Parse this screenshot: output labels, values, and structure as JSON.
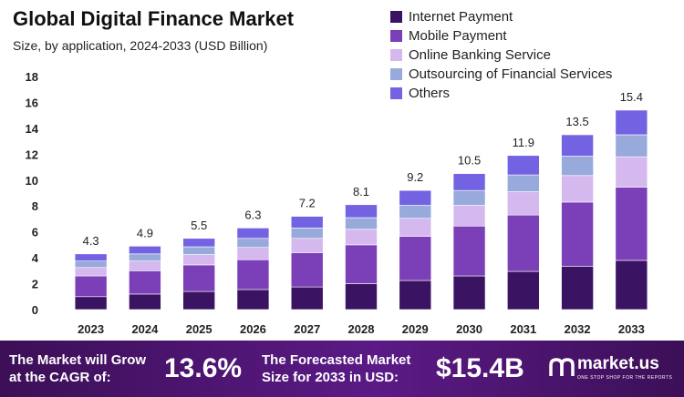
{
  "header": {
    "title": "Global Digital Finance Market",
    "subtitle": "Size, by application, 2024-2033 (USD Billion)"
  },
  "colors": {
    "series": [
      "#3b1363",
      "#7b3fb7",
      "#d5b9ee",
      "#98a9dc",
      "#7363e2"
    ],
    "banner_bg": "#4a1570"
  },
  "chart_data": {
    "type": "bar",
    "stacked": true,
    "categories": [
      "2023",
      "2024",
      "2025",
      "2026",
      "2027",
      "2028",
      "2029",
      "2030",
      "2031",
      "2032",
      "2033"
    ],
    "totals": [
      4.3,
      4.9,
      5.5,
      6.3,
      7.2,
      8.1,
      9.2,
      10.5,
      11.9,
      13.5,
      15.4
    ],
    "series": [
      {
        "name": "Internet Payment",
        "values": [
          1.0,
          1.2,
          1.4,
          1.55,
          1.75,
          2.0,
          2.25,
          2.6,
          2.95,
          3.35,
          3.8
        ]
      },
      {
        "name": "Mobile Payment",
        "values": [
          1.6,
          1.8,
          2.05,
          2.3,
          2.65,
          3.0,
          3.4,
          3.85,
          4.35,
          4.95,
          5.65
        ]
      },
      {
        "name": "Online Banking Service",
        "values": [
          0.65,
          0.75,
          0.8,
          0.95,
          1.1,
          1.2,
          1.4,
          1.6,
          1.8,
          2.05,
          2.35
        ]
      },
      {
        "name": "Outsourcing of Financial Services",
        "values": [
          0.5,
          0.55,
          0.6,
          0.7,
          0.8,
          0.9,
          1.0,
          1.15,
          1.3,
          1.5,
          1.7
        ]
      },
      {
        "name": "Others",
        "values": [
          0.55,
          0.6,
          0.65,
          0.8,
          0.9,
          1.0,
          1.15,
          1.3,
          1.5,
          1.65,
          1.9
        ]
      }
    ],
    "y_ticks": [
      0,
      2,
      4,
      6,
      8,
      10,
      12,
      14,
      16,
      18
    ],
    "ylim": [
      0,
      18
    ],
    "legend_position": "top-right",
    "grid": false
  },
  "banner": {
    "cagr_label_line1": "The Market will Grow",
    "cagr_label_line2": "at the CAGR of:",
    "cagr_value": "13.6%",
    "forecast_label_line1": "The Forecasted Market",
    "forecast_label_line2": "Size for 2033 in USD:",
    "forecast_value": "$15.4B",
    "logo_text": "market.us",
    "logo_tagline": "ONE STOP SHOP FOR THE REPORTS"
  }
}
